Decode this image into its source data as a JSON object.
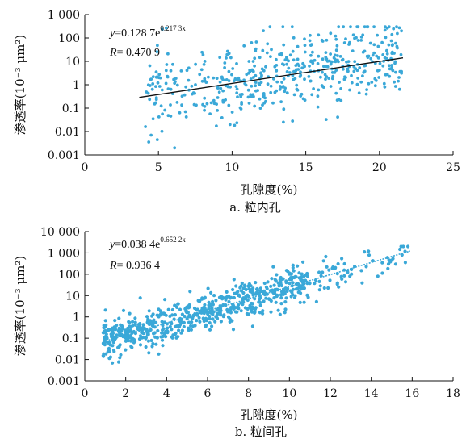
{
  "chart_data": [
    {
      "type": "scatter",
      "caption": "a. 粒内孔",
      "xlabel": "孔隙度(%)",
      "ylabel": "渗透率(10⁻³ μm²)",
      "xlim": [
        0,
        25
      ],
      "ylim": [
        0.001,
        1000
      ],
      "y_scale": "log",
      "x_ticks": [
        "0",
        "5",
        "10",
        "15",
        "20",
        "25"
      ],
      "y_ticks": [
        "0.001",
        "0.01",
        "0.1",
        "1",
        "10",
        "100",
        "1 000"
      ],
      "grid": false,
      "point_color": "#3aa8d8",
      "trend_color": "#111111",
      "equation": {
        "y_prefix": "y",
        "body": "=0.128 7e",
        "exponent": "0.217 3x",
        "r_prefix": "R",
        "r_body": "= 0.470 9"
      },
      "fit": {
        "a": 0.1287,
        "b": 0.2173,
        "x_range": [
          3.7,
          21.6
        ]
      },
      "point_cloud": {
        "count": 520,
        "x_range": [
          3.7,
          21.5
        ],
        "y_range": [
          0.002,
          300
        ],
        "seed": 11,
        "spread_log10": 0.85
      }
    },
    {
      "type": "scatter",
      "caption": "b. 粒间孔",
      "xlabel": "孔隙度(%)",
      "ylabel": "渗透率(10⁻³ μm²)",
      "xlim": [
        0,
        18
      ],
      "ylim": [
        0.001,
        10000
      ],
      "y_scale": "log",
      "x_ticks": [
        "0",
        "2",
        "4",
        "6",
        "8",
        "10",
        "12",
        "14",
        "16",
        "18"
      ],
      "y_ticks": [
        "0.001",
        "0.01",
        "0.1",
        "1",
        "10",
        "100",
        "1 000",
        "10 000"
      ],
      "grid": false,
      "point_color": "#3aa8d8",
      "trend_color": "#3aa8d8",
      "equation": {
        "y_prefix": "y",
        "body": "=0.038 4e",
        "exponent": "0.652 2x",
        "r_prefix": "R",
        "r_body": "= 0.936 4"
      },
      "fit": {
        "a": 0.0384,
        "b": 0.6522,
        "x_range": [
          0.9,
          15.9
        ]
      },
      "point_cloud": {
        "count": 720,
        "x_range": [
          0.9,
          15.9
        ],
        "y_range": [
          0.003,
          2000
        ],
        "seed": 29,
        "spread_log10": 0.45
      }
    }
  ]
}
